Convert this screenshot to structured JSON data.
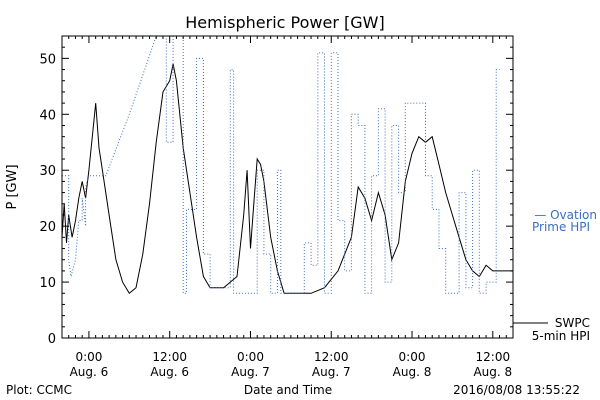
{
  "chart_data": {
    "type": "line",
    "title": "Hemispheric Power [GW]",
    "xlabel": "Date and Time",
    "ylabel": "P [GW]",
    "ylim": [
      0,
      54
    ],
    "yticks": [
      0,
      10,
      20,
      30,
      40,
      50
    ],
    "xlim": [
      "2016-08-05T20:00",
      "2016-08-08T15:00"
    ],
    "xticks": [
      {
        "x": "2016-08-06T00:00",
        "time": "0:00",
        "date": "Aug. 6"
      },
      {
        "x": "2016-08-06T12:00",
        "time": "12:00",
        "date": "Aug. 6"
      },
      {
        "x": "2016-08-07T00:00",
        "time": "0:00",
        "date": "Aug. 7"
      },
      {
        "x": "2016-08-07T12:00",
        "time": "12:00",
        "date": "Aug. 7"
      },
      {
        "x": "2016-08-08T00:00",
        "time": "0:00",
        "date": "Aug. 8"
      },
      {
        "x": "2016-08-08T12:00",
        "time": "12:00",
        "date": "Aug. 8"
      }
    ],
    "grid": false,
    "series": [
      {
        "name": "SWPC 5-min HPI",
        "legend_lines": [
          "SWPC",
          "5-min HPI"
        ],
        "color": "#000000",
        "style": "solid",
        "points": [
          [
            "2016-08-05T20:00",
            18
          ],
          [
            "2016-08-05T20:20",
            24
          ],
          [
            "2016-08-05T20:40",
            17
          ],
          [
            "2016-08-05T21:00",
            22
          ],
          [
            "2016-08-05T21:30",
            18
          ],
          [
            "2016-08-05T22:00",
            21
          ],
          [
            "2016-08-05T22:30",
            25
          ],
          [
            "2016-08-05T23:00",
            28
          ],
          [
            "2016-08-05T23:30",
            25
          ],
          [
            "2016-08-06T00:00",
            30
          ],
          [
            "2016-08-06T00:30",
            36
          ],
          [
            "2016-08-06T01:00",
            42
          ],
          [
            "2016-08-06T01:30",
            34
          ],
          [
            "2016-08-06T02:00",
            30
          ],
          [
            "2016-08-06T03:00",
            22
          ],
          [
            "2016-08-06T04:00",
            14
          ],
          [
            "2016-08-06T05:00",
            10
          ],
          [
            "2016-08-06T06:00",
            8
          ],
          [
            "2016-08-06T07:00",
            9
          ],
          [
            "2016-08-06T08:00",
            15
          ],
          [
            "2016-08-06T09:00",
            24
          ],
          [
            "2016-08-06T10:00",
            35
          ],
          [
            "2016-08-06T11:00",
            44
          ],
          [
            "2016-08-06T12:00",
            46
          ],
          [
            "2016-08-06T12:30",
            49
          ],
          [
            "2016-08-06T13:00",
            46
          ],
          [
            "2016-08-06T14:00",
            34
          ],
          [
            "2016-08-06T15:00",
            26
          ],
          [
            "2016-08-06T16:00",
            18
          ],
          [
            "2016-08-06T17:00",
            11
          ],
          [
            "2016-08-06T18:00",
            9
          ],
          [
            "2016-08-06T20:00",
            9
          ],
          [
            "2016-08-06T22:00",
            11
          ],
          [
            "2016-08-06T23:00",
            22
          ],
          [
            "2016-08-06T23:30",
            30
          ],
          [
            "2016-08-07T00:00",
            16
          ],
          [
            "2016-08-07T00:30",
            24
          ],
          [
            "2016-08-07T01:00",
            32
          ],
          [
            "2016-08-07T01:30",
            31
          ],
          [
            "2016-08-07T02:00",
            28
          ],
          [
            "2016-08-07T03:00",
            18
          ],
          [
            "2016-08-07T04:00",
            12
          ],
          [
            "2016-08-07T05:00",
            8
          ],
          [
            "2016-08-07T07:00",
            8
          ],
          [
            "2016-08-07T09:00",
            8
          ],
          [
            "2016-08-07T11:00",
            9
          ],
          [
            "2016-08-07T13:00",
            12
          ],
          [
            "2016-08-07T15:00",
            18
          ],
          [
            "2016-08-07T16:00",
            27
          ],
          [
            "2016-08-07T17:00",
            25
          ],
          [
            "2016-08-07T18:00",
            21
          ],
          [
            "2016-08-07T19:00",
            26
          ],
          [
            "2016-08-07T20:00",
            22
          ],
          [
            "2016-08-07T21:00",
            14
          ],
          [
            "2016-08-07T22:00",
            17
          ],
          [
            "2016-08-07T23:00",
            28
          ],
          [
            "2016-08-08T00:00",
            33
          ],
          [
            "2016-08-08T01:00",
            36
          ],
          [
            "2016-08-08T02:00",
            35
          ],
          [
            "2016-08-08T03:00",
            36
          ],
          [
            "2016-08-08T04:00",
            31
          ],
          [
            "2016-08-08T05:00",
            26
          ],
          [
            "2016-08-08T06:00",
            22
          ],
          [
            "2016-08-08T07:00",
            18
          ],
          [
            "2016-08-08T08:00",
            14
          ],
          [
            "2016-08-08T09:00",
            12
          ],
          [
            "2016-08-08T10:00",
            11
          ],
          [
            "2016-08-08T11:00",
            13
          ],
          [
            "2016-08-08T12:00",
            12
          ],
          [
            "2016-08-08T15:00",
            12
          ]
        ]
      },
      {
        "name": "Ovation Prime HPI",
        "legend_lines": [
          "— Ovation",
          "Prime HPI"
        ],
        "color": "#3a6fc0",
        "style": "dotted",
        "points": [
          [
            "2016-08-05T20:00",
            29
          ],
          [
            "2016-08-05T21:00",
            29
          ],
          [
            "2016-08-05T21:00",
            14
          ],
          [
            "2016-08-05T21:20",
            11
          ],
          [
            "2016-08-05T22:00",
            14
          ],
          [
            "2016-08-05T22:30",
            21
          ],
          [
            "2016-08-05T23:00",
            21
          ],
          [
            "2016-08-05T23:00",
            25
          ],
          [
            "2016-08-05T23:30",
            20
          ],
          [
            "2016-08-05T23:30",
            27
          ],
          [
            "2016-08-06T00:00",
            29
          ],
          [
            "2016-08-06T00:00",
            29
          ],
          [
            "2016-08-06T01:30",
            29
          ],
          [
            "2016-08-06T02:30",
            29
          ],
          [
            "2016-08-06T06:00",
            40
          ],
          [
            "2016-08-06T10:00",
            54
          ],
          [
            "2016-08-06T11:30",
            54
          ],
          [
            "2016-08-06T11:30",
            35
          ],
          [
            "2016-08-06T12:30",
            35
          ],
          [
            "2016-08-06T12:30",
            54
          ],
          [
            "2016-08-06T14:00",
            54
          ],
          [
            "2016-08-06T14:00",
            8
          ],
          [
            "2016-08-06T14:30",
            8
          ],
          [
            "2016-08-06T14:30",
            23
          ],
          [
            "2016-08-06T16:00",
            23
          ],
          [
            "2016-08-06T16:00",
            50
          ],
          [
            "2016-08-06T17:00",
            50
          ],
          [
            "2016-08-06T17:00",
            15
          ],
          [
            "2016-08-06T18:00",
            15
          ],
          [
            "2016-08-06T18:00",
            9
          ],
          [
            "2016-08-06T21:00",
            9
          ],
          [
            "2016-08-06T21:00",
            48
          ],
          [
            "2016-08-06T21:30",
            48
          ],
          [
            "2016-08-06T21:30",
            8
          ],
          [
            "2016-08-07T01:00",
            8
          ],
          [
            "2016-08-07T01:00",
            30
          ],
          [
            "2016-08-07T02:00",
            30
          ],
          [
            "2016-08-07T02:00",
            15
          ],
          [
            "2016-08-07T03:00",
            15
          ],
          [
            "2016-08-07T03:00",
            8
          ],
          [
            "2016-08-07T04:00",
            8
          ],
          [
            "2016-08-07T04:00",
            30
          ],
          [
            "2016-08-07T04:30",
            30
          ],
          [
            "2016-08-07T04:30",
            8
          ],
          [
            "2016-08-07T08:00",
            8
          ],
          [
            "2016-08-07T08:00",
            17
          ],
          [
            "2016-08-07T09:00",
            17
          ],
          [
            "2016-08-07T09:00",
            13
          ],
          [
            "2016-08-07T10:00",
            13
          ],
          [
            "2016-08-07T10:00",
            51
          ],
          [
            "2016-08-07T11:00",
            51
          ],
          [
            "2016-08-07T11:00",
            8
          ],
          [
            "2016-08-07T12:00",
            8
          ],
          [
            "2016-08-07T12:00",
            51
          ],
          [
            "2016-08-07T13:00",
            51
          ],
          [
            "2016-08-07T13:00",
            21
          ],
          [
            "2016-08-07T14:00",
            21
          ],
          [
            "2016-08-07T14:00",
            12
          ],
          [
            "2016-08-07T15:00",
            12
          ],
          [
            "2016-08-07T15:00",
            40
          ],
          [
            "2016-08-07T16:00",
            40
          ],
          [
            "2016-08-07T16:00",
            38
          ],
          [
            "2016-08-07T17:00",
            38
          ],
          [
            "2016-08-07T17:00",
            8
          ],
          [
            "2016-08-07T18:00",
            8
          ],
          [
            "2016-08-07T18:00",
            29
          ],
          [
            "2016-08-07T19:00",
            29
          ],
          [
            "2016-08-07T19:00",
            41
          ],
          [
            "2016-08-07T20:00",
            41
          ],
          [
            "2016-08-07T20:00",
            10
          ],
          [
            "2016-08-07T21:00",
            10
          ],
          [
            "2016-08-07T21:00",
            38
          ],
          [
            "2016-08-07T22:00",
            38
          ],
          [
            "2016-08-07T22:00",
            26
          ],
          [
            "2016-08-07T23:00",
            26
          ],
          [
            "2016-08-07T23:00",
            42
          ],
          [
            "2016-08-08T02:00",
            42
          ],
          [
            "2016-08-08T02:00",
            29
          ],
          [
            "2016-08-08T03:00",
            29
          ],
          [
            "2016-08-08T03:00",
            23
          ],
          [
            "2016-08-08T04:00",
            23
          ],
          [
            "2016-08-08T04:00",
            16
          ],
          [
            "2016-08-08T05:00",
            16
          ],
          [
            "2016-08-08T05:00",
            8
          ],
          [
            "2016-08-08T07:00",
            8
          ],
          [
            "2016-08-08T07:00",
            26
          ],
          [
            "2016-08-08T08:00",
            26
          ],
          [
            "2016-08-08T08:00",
            9
          ],
          [
            "2016-08-08T09:00",
            9
          ],
          [
            "2016-08-08T09:00",
            30
          ],
          [
            "2016-08-08T10:00",
            30
          ],
          [
            "2016-08-08T10:00",
            8
          ],
          [
            "2016-08-08T11:00",
            8
          ],
          [
            "2016-08-08T11:00",
            10
          ],
          [
            "2016-08-08T12:30",
            10
          ],
          [
            "2016-08-08T12:30",
            48
          ],
          [
            "2016-08-08T13:00",
            48
          ]
        ]
      }
    ]
  },
  "footer": {
    "left": "Plot: CCMC",
    "right": "2016/08/08  13:55:22"
  }
}
